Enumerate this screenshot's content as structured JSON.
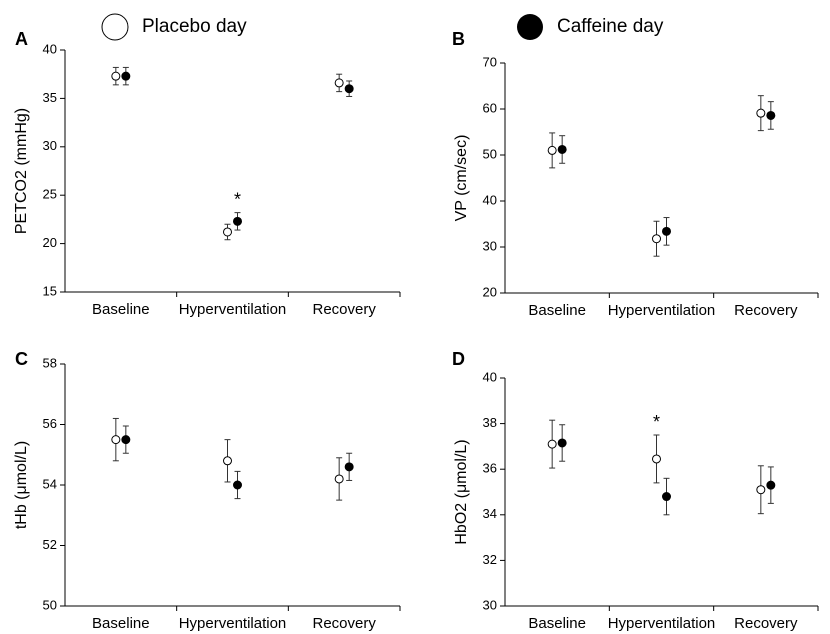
{
  "chart_data": [
    {
      "type": "errorbar",
      "label": "A",
      "y_label": "PETCO2 (mmHg)",
      "categories": [
        "Baseline",
        "Hyperventilation",
        "Recovery"
      ],
      "series": [
        {
          "name": "Placebo day",
          "color": "#ffffff",
          "values": [
            37.3,
            21.2,
            36.6
          ],
          "errors": [
            0.9,
            0.8,
            0.9
          ]
        },
        {
          "name": "Caffeine day",
          "color": "#000000",
          "values": [
            37.3,
            22.3,
            36.0
          ],
          "errors": [
            0.9,
            0.9,
            0.8
          ]
        }
      ],
      "ylim": [
        15,
        40
      ],
      "yticks": [
        15,
        20,
        25,
        30,
        35,
        40
      ],
      "annotation": "*"
    },
    {
      "type": "errorbar",
      "label": "B",
      "y_label": "VP (cm/sec)",
      "categories": [
        "Baseline",
        "Hyperventilation",
        "Recovery"
      ],
      "series": [
        {
          "color": "#ffffff",
          "values": [
            51.0,
            31.8,
            59.1
          ],
          "errors": [
            3.8,
            3.8,
            3.8
          ]
        },
        {
          "color": "#000000",
          "values": [
            51.2,
            33.4,
            58.6
          ],
          "errors": [
            3.0,
            3.0,
            3.0
          ]
        }
      ],
      "ylim": [
        20,
        70
      ],
      "yticks": [
        20,
        30,
        40,
        50,
        60,
        70
      ]
    },
    {
      "type": "errorbar",
      "label": "C",
      "y_label": "tHb (μmol/L)",
      "categories": [
        "Baseline",
        "Hyperventilation",
        "Recovery"
      ],
      "series": [
        {
          "color": "#ffffff",
          "values": [
            55.5,
            54.8,
            54.2
          ],
          "errors": [
            0.7,
            0.7,
            0.7
          ]
        },
        {
          "color": "#000000",
          "values": [
            55.5,
            54.0,
            54.6
          ],
          "errors": [
            0.45,
            0.45,
            0.45
          ]
        }
      ],
      "ylim": [
        50,
        58
      ],
      "yticks": [
        50,
        52,
        54,
        56,
        58
      ]
    },
    {
      "type": "errorbar",
      "label": "D",
      "y_label": "HbO2 (μmol/L)",
      "categories": [
        "Baseline",
        "Hyperventilation",
        "Recovery"
      ],
      "series": [
        {
          "color": "#ffffff",
          "values": [
            37.1,
            36.45,
            35.1
          ],
          "errors": [
            1.05,
            1.05,
            1.05
          ]
        },
        {
          "color": "#000000",
          "values": [
            37.15,
            34.8,
            35.3
          ],
          "errors": [
            0.8,
            0.8,
            0.8
          ]
        }
      ],
      "ylim": [
        30,
        40
      ],
      "yticks": [
        30,
        32,
        34,
        36,
        38,
        40
      ],
      "annotation": "*"
    }
  ]
}
